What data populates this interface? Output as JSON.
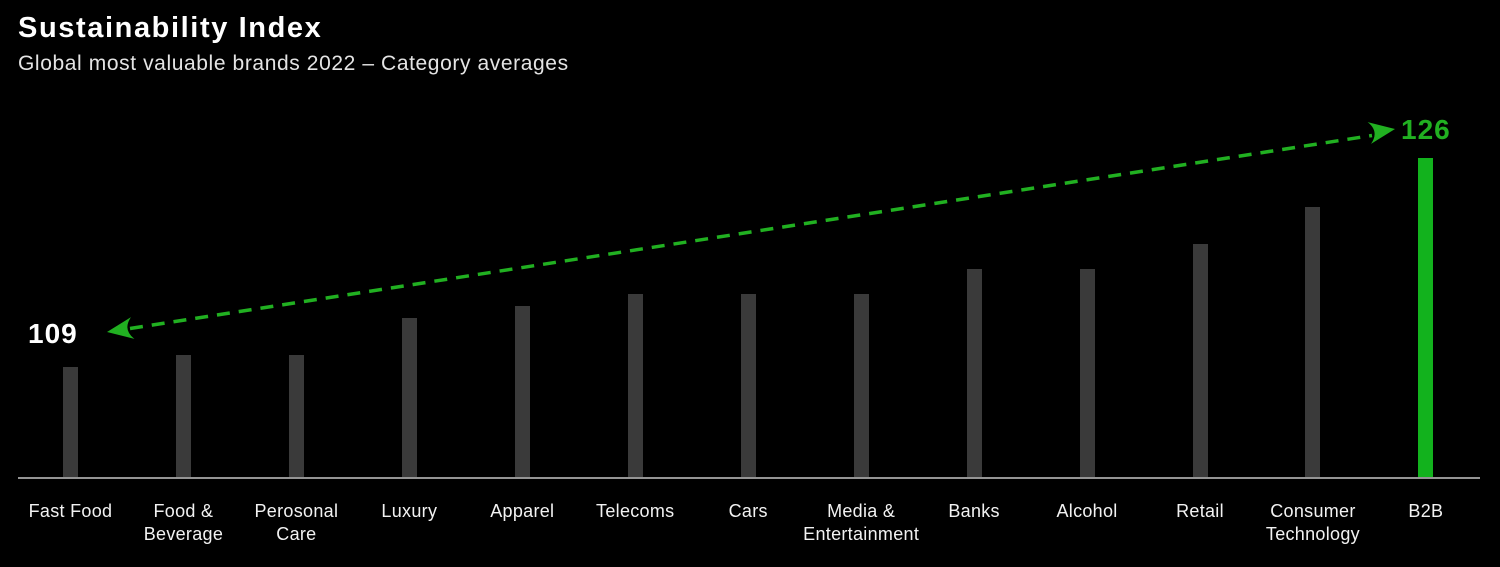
{
  "header": {
    "title": "Sustainability Index",
    "subtitle": "Global most valuable brands 2022 – Category averages"
  },
  "chart_data": {
    "type": "bar",
    "title": "Sustainability Index",
    "subtitle": "Global most valuable brands 2022 – Category averages",
    "xlabel": "",
    "ylabel": "",
    "ylim": [
      100,
      128
    ],
    "grid": false,
    "legend": "none",
    "categories": [
      "Fast Food",
      "Food & Beverage",
      "Perosonal Care",
      "Luxury",
      "Apparel",
      "Telecoms",
      "Cars",
      "Media & Entertainment",
      "Banks",
      "Alcohol",
      "Retail",
      "Consumer Technology",
      "B2B"
    ],
    "category_lines": [
      [
        "Fast Food"
      ],
      [
        "Food &",
        "Beverage"
      ],
      [
        "Perosonal",
        "Care"
      ],
      [
        "Luxury"
      ],
      [
        "Apparel"
      ],
      [
        "Telecoms"
      ],
      [
        "Cars"
      ],
      [
        "Media &",
        "Entertainment"
      ],
      [
        "Banks"
      ],
      [
        "Alcohol"
      ],
      [
        "Retail"
      ],
      [
        "Consumer",
        "Technology"
      ],
      [
        "B2B"
      ]
    ],
    "values": [
      109,
      110,
      110,
      113,
      114,
      115,
      115,
      115,
      117,
      117,
      119,
      122,
      126
    ],
    "highlight_category": "B2B",
    "highlight_index": 12,
    "annotation_arrow": {
      "from_label": "109",
      "to_label": "126",
      "from_value": 109,
      "to_value": 126,
      "style": "dashed-double-headed"
    },
    "colors": {
      "background": "#000000",
      "bar": "#3a3a3a",
      "highlight_bar": "#12b21d",
      "accent_green": "#21b021",
      "axis": "#949494",
      "label_text": "#f2f2f2",
      "annotation_start_text": "#ffffff"
    }
  }
}
